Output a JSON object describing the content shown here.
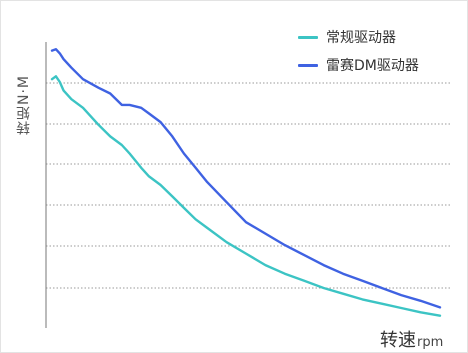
{
  "chart_data": {
    "type": "line",
    "ylabel": "转矩N·M",
    "xlabel": "转速",
    "xunit": "rpm",
    "xlim": [
      0,
      100
    ],
    "ylim": [
      0,
      100
    ],
    "grid": true,
    "legend_position": "top-right",
    "series": [
      {
        "name": "常规驱动器",
        "color": "#3cc4c4",
        "x": [
          0,
          1,
          2,
          3,
          5,
          8,
          12,
          15,
          18,
          20,
          23,
          25,
          28,
          31,
          34,
          37,
          40,
          45,
          50,
          55,
          60,
          65,
          70,
          75,
          80,
          85,
          90,
          95,
          100
        ],
        "y": [
          87,
          88,
          86,
          83,
          80,
          77,
          71,
          67,
          64,
          61,
          56,
          53,
          50,
          46,
          42,
          38,
          35,
          30,
          26,
          22,
          19,
          16.5,
          14,
          12,
          10,
          8.5,
          7,
          5.5,
          4.3
        ]
      },
      {
        "name": "雷赛DM驱动器",
        "color": "#3f62e2",
        "x": [
          0,
          1,
          2,
          3,
          5,
          8,
          12,
          15,
          18,
          20,
          23,
          25,
          28,
          31,
          34,
          37,
          40,
          45,
          50,
          55,
          60,
          65,
          70,
          75,
          80,
          85,
          90,
          95,
          100
        ],
        "y": [
          97,
          97.5,
          96,
          94,
          91,
          87,
          84,
          82,
          78,
          78,
          77,
          75,
          72,
          67,
          61,
          56,
          51,
          44,
          37,
          33,
          29,
          25.5,
          22,
          19,
          16.5,
          14,
          11.5,
          9.5,
          7.2
        ]
      }
    ]
  }
}
